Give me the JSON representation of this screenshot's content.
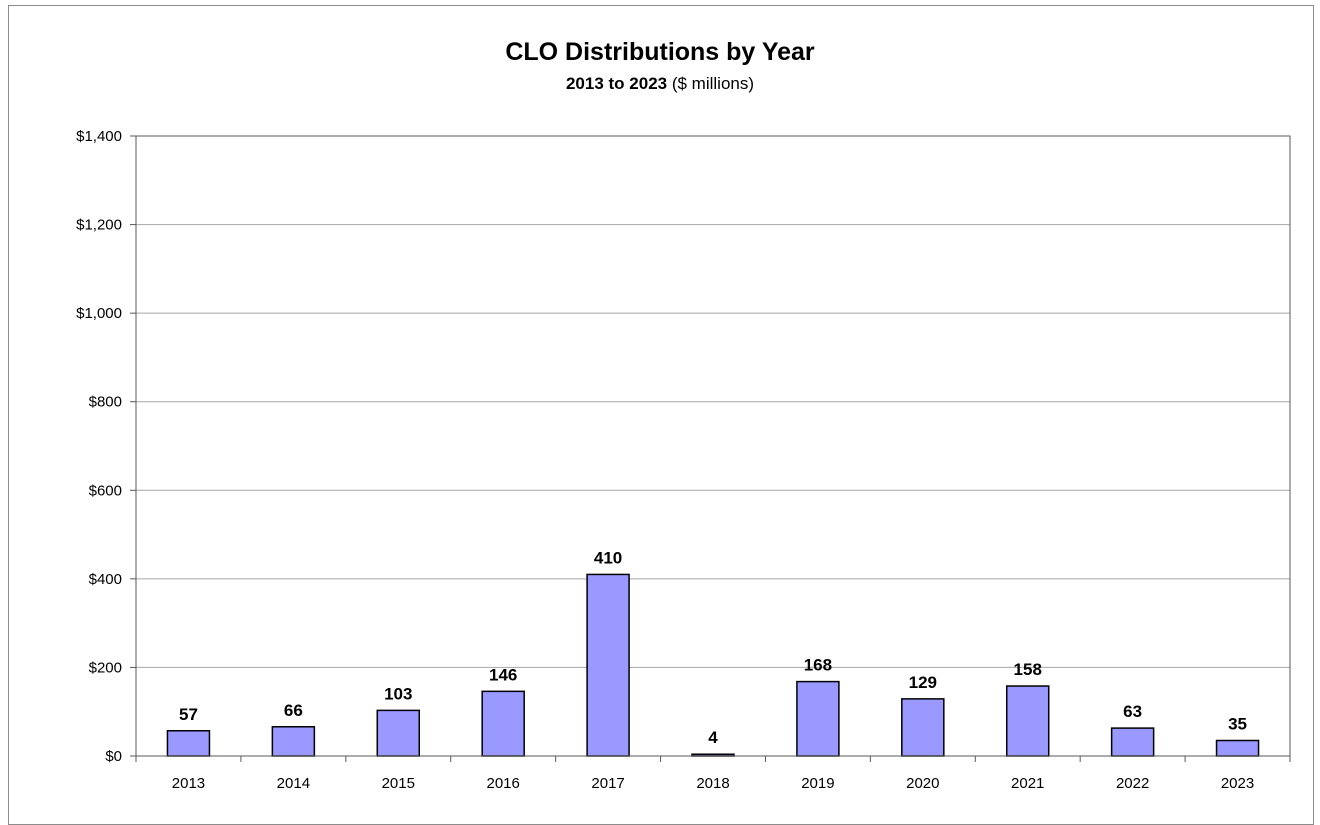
{
  "chart_data": {
    "type": "bar",
    "title": "CLO Distributions by Year",
    "subtitle_bold": "2013 to 2023",
    "subtitle_rest": " ($ millions)",
    "categories": [
      "2013",
      "2014",
      "2015",
      "2016",
      "2017",
      "2018",
      "2019",
      "2020",
      "2021",
      "2022",
      "2023"
    ],
    "values": [
      57,
      66,
      103,
      146,
      410,
      4,
      168,
      129,
      158,
      63,
      35
    ],
    "data_labels": [
      "57",
      "66",
      "103",
      "146",
      "410",
      "4",
      "168",
      "129",
      "158",
      "63",
      "35"
    ],
    "ylim": [
      0,
      1400
    ],
    "yticks": [
      0,
      200,
      400,
      600,
      800,
      1000,
      1200,
      1400
    ],
    "ytick_labels": [
      "$0",
      "$200",
      "$400",
      "$600",
      "$800",
      "$1,000",
      "$1,200",
      "$1,400"
    ],
    "xlabel": "",
    "ylabel": "",
    "grid": true,
    "legend": "none",
    "colors": {
      "bar_fill": "#9999ff",
      "bar_stroke": "#000000",
      "grid": "#a6a6a6",
      "axis": "#595959"
    }
  }
}
